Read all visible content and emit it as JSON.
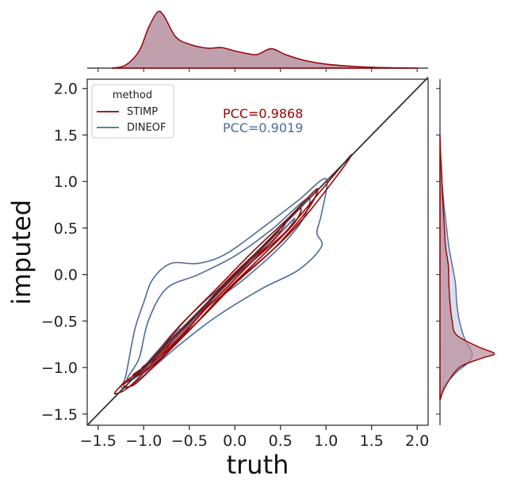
{
  "chart_data": {
    "type": "jointplot-kde",
    "xlabel": "truth",
    "ylabel": "imputed",
    "xlim": [
      -1.62,
      2.12
    ],
    "ylim": [
      -1.62,
      2.1
    ],
    "x_ticks": [
      -1.5,
      -1.0,
      -0.5,
      0.0,
      0.5,
      1.0,
      1.5,
      2.0
    ],
    "y_ticks": [
      -1.5,
      -1.0,
      -0.5,
      0.0,
      0.5,
      1.0,
      1.5,
      2.0
    ],
    "x_tick_labels": [
      "−1.5",
      "−1.0",
      "−0.5",
      "0.0",
      "0.5",
      "1.0",
      "1.5",
      "2.0"
    ],
    "y_tick_labels": [
      "−1.5",
      "−1.0",
      "−0.5",
      "0.0",
      "0.5",
      "1.0",
      "1.5",
      "2.0"
    ],
    "identity_line": [
      [
        -1.62,
        -1.62
      ],
      [
        2.12,
        2.12
      ]
    ],
    "legend": {
      "title": "method",
      "placement": "top-left",
      "entries": [
        {
          "label": "STIMP",
          "color": "#990000"
        },
        {
          "label": "DINEOF",
          "color": "#4c6a9a"
        }
      ]
    },
    "annotations": [
      {
        "text": "PCC=0.9868",
        "color": "#990000"
      },
      {
        "text": "PCC=0.9019",
        "color": "#4c6a9a"
      }
    ],
    "series": [
      {
        "name": "STIMP",
        "color": "#990000",
        "fill": "#b06a7a",
        "kde_levels": 9,
        "contours": [
          [
            [
              -1.32,
              -1.28
            ],
            [
              -1.2,
              -1.15
            ],
            [
              -1.0,
              -1.0
            ],
            [
              -0.6,
              -0.6
            ],
            [
              -0.2,
              -0.25
            ],
            [
              0.2,
              0.15
            ],
            [
              0.55,
              0.45
            ],
            [
              0.9,
              0.85
            ],
            [
              1.27,
              1.28
            ],
            [
              1.15,
              1.1
            ],
            [
              0.75,
              0.6
            ],
            [
              0.4,
              0.25
            ],
            [
              0.0,
              -0.1
            ],
            [
              -0.4,
              -0.5
            ],
            [
              -0.8,
              -0.85
            ],
            [
              -1.15,
              -1.2
            ],
            [
              -1.32,
              -1.28
            ]
          ],
          [
            [
              -1.22,
              -1.18
            ],
            [
              -1.0,
              -1.02
            ],
            [
              -0.6,
              -0.55
            ],
            [
              -0.2,
              -0.15
            ],
            [
              0.2,
              0.25
            ],
            [
              0.6,
              0.62
            ],
            [
              0.9,
              0.92
            ],
            [
              0.8,
              0.7
            ],
            [
              0.45,
              0.3
            ],
            [
              0.05,
              -0.05
            ],
            [
              -0.35,
              -0.45
            ],
            [
              -0.8,
              -0.9
            ],
            [
              -1.1,
              -1.18
            ],
            [
              -1.22,
              -1.18
            ]
          ],
          [
            [
              -1.12,
              -1.08
            ],
            [
              -0.9,
              -0.92
            ],
            [
              -0.5,
              -0.52
            ],
            [
              -0.1,
              -0.08
            ],
            [
              0.3,
              0.3
            ],
            [
              0.7,
              0.7
            ],
            [
              0.65,
              0.55
            ],
            [
              0.3,
              0.2
            ],
            [
              -0.1,
              -0.18
            ],
            [
              -0.5,
              -0.6
            ],
            [
              -0.95,
              -1.02
            ],
            [
              -1.12,
              -1.08
            ]
          ],
          [
            [
              -1.02,
              -1.0
            ],
            [
              -0.8,
              -0.82
            ],
            [
              -0.4,
              -0.42
            ],
            [
              0.0,
              -0.02
            ],
            [
              0.35,
              0.33
            ],
            [
              0.55,
              0.55
            ],
            [
              0.45,
              0.4
            ],
            [
              0.1,
              0.05
            ],
            [
              -0.3,
              -0.35
            ],
            [
              -0.7,
              -0.78
            ],
            [
              -1.02,
              -1.0
            ]
          ],
          [
            [
              -0.96,
              -0.96
            ],
            [
              -0.78,
              -0.76
            ],
            [
              -0.5,
              -0.5
            ],
            [
              -0.2,
              -0.2
            ],
            [
              -0.4,
              -0.45
            ],
            [
              -0.75,
              -0.82
            ],
            [
              -0.96,
              -0.96
            ]
          ],
          [
            [
              0.2,
              0.18
            ],
            [
              0.4,
              0.38
            ],
            [
              0.5,
              0.47
            ],
            [
              0.42,
              0.36
            ],
            [
              0.25,
              0.22
            ],
            [
              0.2,
              0.18
            ]
          ],
          [
            [
              -0.9,
              -0.92
            ],
            [
              -0.8,
              -0.82
            ],
            [
              -0.72,
              -0.75
            ],
            [
              -0.82,
              -0.88
            ],
            [
              -0.9,
              -0.92
            ]
          ],
          [
            [
              -0.6,
              -0.6
            ],
            [
              -0.45,
              -0.45
            ],
            [
              -0.5,
              -0.52
            ],
            [
              -0.6,
              -0.6
            ]
          ]
        ],
        "marginal_x": [
          [
            -1.35,
            0.0
          ],
          [
            -1.2,
            0.05
          ],
          [
            -1.05,
            0.3
          ],
          [
            -0.95,
            0.7
          ],
          [
            -0.85,
            0.98
          ],
          [
            -0.78,
            0.92
          ],
          [
            -0.65,
            0.55
          ],
          [
            -0.5,
            0.42
          ],
          [
            -0.3,
            0.35
          ],
          [
            -0.15,
            0.36
          ],
          [
            0.0,
            0.3
          ],
          [
            0.15,
            0.25
          ],
          [
            0.25,
            0.24
          ],
          [
            0.4,
            0.34
          ],
          [
            0.55,
            0.24
          ],
          [
            0.75,
            0.14
          ],
          [
            1.0,
            0.07
          ],
          [
            1.3,
            0.03
          ],
          [
            1.6,
            0.01
          ],
          [
            2.0,
            0.0
          ]
        ],
        "marginal_y": [
          [
            -1.35,
            0.0
          ],
          [
            -1.2,
            0.1
          ],
          [
            -1.0,
            0.35
          ],
          [
            -0.9,
            0.75
          ],
          [
            -0.85,
            0.98
          ],
          [
            -0.78,
            0.7
          ],
          [
            -0.65,
            0.3
          ],
          [
            -0.5,
            0.22
          ],
          [
            -0.3,
            0.18
          ],
          [
            -0.1,
            0.16
          ],
          [
            0.1,
            0.15
          ],
          [
            0.3,
            0.1
          ],
          [
            0.5,
            0.08
          ],
          [
            0.7,
            0.06
          ],
          [
            0.9,
            0.04
          ],
          [
            1.1,
            0.03
          ],
          [
            1.3,
            0.01
          ],
          [
            1.5,
            0.0
          ]
        ]
      },
      {
        "name": "DINEOF",
        "color": "#4c6a9a",
        "fill": "#b9c4dc",
        "kde_levels": 9,
        "contours": [
          [
            [
              -1.25,
              -1.2
            ],
            [
              -1.2,
              -1.1
            ],
            [
              -1.1,
              -0.6
            ],
            [
              -1.0,
              -0.3
            ],
            [
              -0.9,
              -0.05
            ],
            [
              -0.7,
              0.12
            ],
            [
              -0.4,
              0.12
            ],
            [
              -0.1,
              0.22
            ],
            [
              0.3,
              0.5
            ],
            [
              0.7,
              0.8
            ],
            [
              1.0,
              1.03
            ],
            [
              0.95,
              0.65
            ],
            [
              0.9,
              0.45
            ],
            [
              0.95,
              0.3
            ],
            [
              0.7,
              0.05
            ],
            [
              0.3,
              -0.15
            ],
            [
              -0.2,
              -0.45
            ],
            [
              -0.6,
              -0.75
            ],
            [
              -0.9,
              -1.0
            ],
            [
              -1.15,
              -1.2
            ],
            [
              -1.25,
              -1.2
            ]
          ],
          [
            [
              -1.18,
              -1.12
            ],
            [
              -1.05,
              -0.9
            ],
            [
              -0.95,
              -0.5
            ],
            [
              -0.75,
              -0.15
            ],
            [
              -0.4,
              0.0
            ],
            [
              0.0,
              0.2
            ],
            [
              0.4,
              0.48
            ],
            [
              0.8,
              0.82
            ],
            [
              0.75,
              0.6
            ],
            [
              0.5,
              0.3
            ],
            [
              0.1,
              -0.05
            ],
            [
              -0.3,
              -0.35
            ],
            [
              -0.7,
              -0.75
            ],
            [
              -1.05,
              -1.08
            ],
            [
              -1.18,
              -1.12
            ]
          ],
          [
            [
              -1.1,
              -1.08
            ],
            [
              -0.95,
              -0.95
            ],
            [
              -0.7,
              -0.65
            ],
            [
              -0.4,
              -0.35
            ],
            [
              0.0,
              0.0
            ],
            [
              0.4,
              0.35
            ],
            [
              0.65,
              0.6
            ],
            [
              0.55,
              0.45
            ],
            [
              0.2,
              0.15
            ],
            [
              -0.2,
              -0.2
            ],
            [
              -0.6,
              -0.65
            ],
            [
              -0.95,
              -1.0
            ],
            [
              -1.1,
              -1.08
            ]
          ],
          [
            [
              -1.05,
              -1.05
            ],
            [
              -0.8,
              -0.8
            ],
            [
              -0.5,
              -0.5
            ],
            [
              -0.2,
              -0.2
            ],
            [
              0.2,
              0.15
            ],
            [
              0.4,
              0.35
            ],
            [
              0.3,
              0.25
            ],
            [
              0.0,
              -0.05
            ],
            [
              -0.4,
              -0.45
            ],
            [
              -0.8,
              -0.88
            ],
            [
              -1.05,
              -1.05
            ]
          ],
          [
            [
              -1.0,
              -1.0
            ],
            [
              -0.85,
              -0.82
            ],
            [
              -0.6,
              -0.58
            ],
            [
              -0.75,
              -0.8
            ],
            [
              -1.0,
              -1.0
            ]
          ],
          [
            [
              -0.95,
              -0.96
            ],
            [
              -0.85,
              -0.85
            ],
            [
              -0.8,
              -0.86
            ],
            [
              -0.95,
              -0.96
            ]
          ]
        ],
        "marginal_x": [
          [
            -1.35,
            0.0
          ],
          [
            -1.2,
            0.05
          ],
          [
            -1.05,
            0.3
          ],
          [
            -0.95,
            0.7
          ],
          [
            -0.85,
            0.98
          ],
          [
            -0.78,
            0.92
          ],
          [
            -0.65,
            0.55
          ],
          [
            -0.5,
            0.42
          ],
          [
            -0.3,
            0.35
          ],
          [
            -0.15,
            0.36
          ],
          [
            0.0,
            0.3
          ],
          [
            0.15,
            0.25
          ],
          [
            0.25,
            0.24
          ],
          [
            0.4,
            0.34
          ],
          [
            0.55,
            0.24
          ],
          [
            0.75,
            0.14
          ],
          [
            1.0,
            0.07
          ],
          [
            1.3,
            0.03
          ],
          [
            1.6,
            0.01
          ],
          [
            2.0,
            0.0
          ]
        ],
        "marginal_y": [
          [
            -1.35,
            0.0
          ],
          [
            -1.2,
            0.08
          ],
          [
            -1.05,
            0.3
          ],
          [
            -0.95,
            0.5
          ],
          [
            -0.85,
            0.58
          ],
          [
            -0.7,
            0.45
          ],
          [
            -0.5,
            0.35
          ],
          [
            -0.3,
            0.3
          ],
          [
            -0.1,
            0.28
          ],
          [
            0.1,
            0.22
          ],
          [
            0.3,
            0.16
          ],
          [
            0.5,
            0.12
          ],
          [
            0.7,
            0.08
          ],
          [
            0.9,
            0.05
          ],
          [
            1.1,
            0.02
          ],
          [
            1.3,
            0.0
          ]
        ]
      }
    ]
  }
}
